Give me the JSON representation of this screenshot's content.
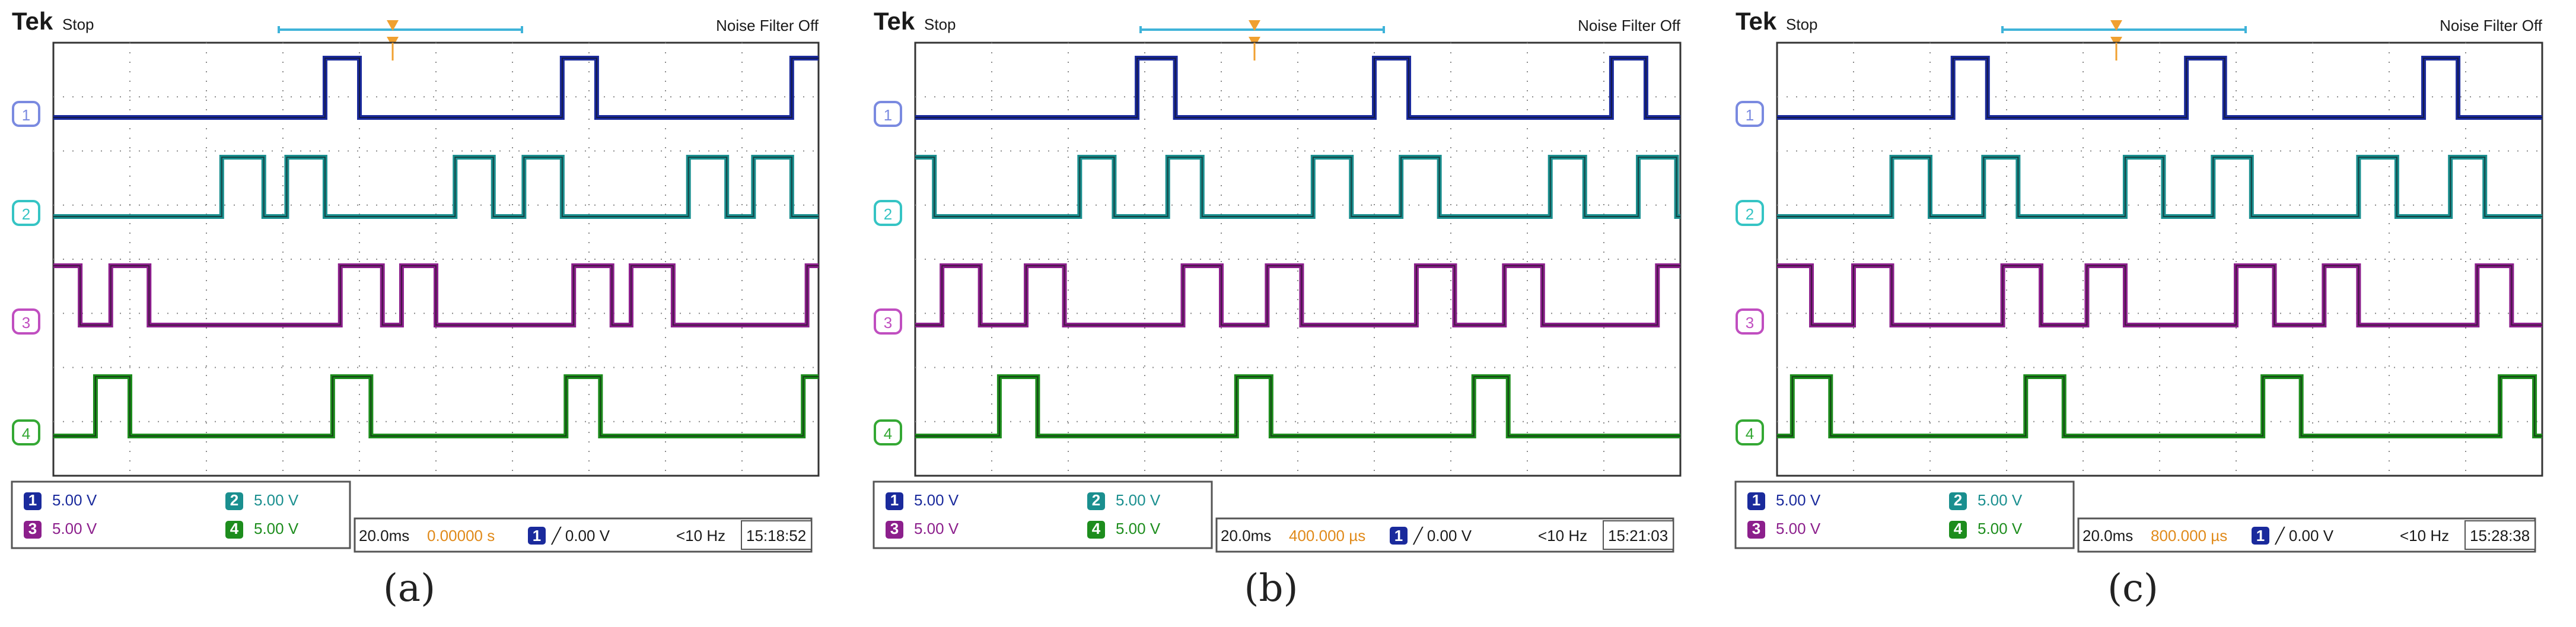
{
  "chart_data": [
    {
      "type": "line",
      "panel_label": "(a)",
      "brand": "Tek",
      "run_state": "Stop",
      "noise_filter": "Noise Filter Off",
      "time_div": "20.0ms",
      "trigger_offset": "0.00000 s",
      "trigger_source": "1",
      "trigger_level": "╱ 0.00 V",
      "trigger_freq": "<10 Hz",
      "timestamp": "15:18:52",
      "channels": [
        {
          "id": "1",
          "scale": "5.00 V",
          "color": "#1a2a9c",
          "label_color": "#7a8ae0"
        },
        {
          "id": "2",
          "scale": "5.00 V",
          "color": "#1a8f8f",
          "label_color": "#35c4c4"
        },
        {
          "id": "3",
          "scale": "5.00 V",
          "color": "#8c1f8c",
          "label_color": "#c04ec0"
        },
        {
          "id": "4",
          "scale": "5.00 V",
          "color": "#1d8d1d",
          "label_color": "#34a834"
        }
      ],
      "x_range": [
        0,
        10
      ],
      "series": [
        {
          "channel": "1",
          "high_intervals": [
            [
              3.55,
              4.0
            ],
            [
              6.65,
              7.1
            ],
            [
              9.65,
              10.1
            ]
          ]
        },
        {
          "channel": "2",
          "high_intervals": [
            [
              2.2,
              2.75
            ],
            [
              3.05,
              3.55
            ],
            [
              5.25,
              5.75
            ],
            [
              6.15,
              6.65
            ],
            [
              8.3,
              8.8
            ],
            [
              9.15,
              9.65
            ]
          ]
        },
        {
          "channel": "3",
          "high_intervals": [
            [
              -0.1,
              0.35
            ],
            [
              0.75,
              1.25
            ],
            [
              3.75,
              4.3
            ],
            [
              4.55,
              5.0
            ],
            [
              6.8,
              7.3
            ],
            [
              7.55,
              8.1
            ],
            [
              9.85,
              10.1
            ]
          ]
        },
        {
          "channel": "4",
          "high_intervals": [
            [
              0.55,
              1.0
            ],
            [
              3.65,
              4.15
            ],
            [
              6.7,
              7.15
            ],
            [
              9.8,
              10.1
            ]
          ]
        }
      ]
    },
    {
      "type": "line",
      "panel_label": "(b)",
      "brand": "Tek",
      "run_state": "Stop",
      "noise_filter": "Noise Filter Off",
      "time_div": "20.0ms",
      "trigger_offset": "400.000 µs",
      "trigger_source": "1",
      "trigger_level": "╱ 0.00 V",
      "trigger_freq": "<10 Hz",
      "timestamp": "15:21:03",
      "channels": [
        {
          "id": "1",
          "scale": "5.00 V",
          "color": "#1a2a9c",
          "label_color": "#7a8ae0"
        },
        {
          "id": "2",
          "scale": "5.00 V",
          "color": "#1a8f8f",
          "label_color": "#35c4c4"
        },
        {
          "id": "3",
          "scale": "5.00 V",
          "color": "#8c1f8c",
          "label_color": "#c04ec0"
        },
        {
          "id": "4",
          "scale": "5.00 V",
          "color": "#1d8d1d",
          "label_color": "#34a834"
        }
      ],
      "x_range": [
        0,
        10
      ],
      "series": [
        {
          "channel": "1",
          "high_intervals": [
            [
              2.9,
              3.4
            ],
            [
              6.0,
              6.45
            ],
            [
              9.1,
              9.55
            ]
          ]
        },
        {
          "channel": "2",
          "high_intervals": [
            [
              -0.1,
              0.25
            ],
            [
              2.15,
              2.6
            ],
            [
              3.3,
              3.75
            ],
            [
              5.2,
              5.7
            ],
            [
              6.35,
              6.85
            ],
            [
              8.3,
              8.75
            ],
            [
              9.45,
              9.95
            ]
          ]
        },
        {
          "channel": "3",
          "high_intervals": [
            [
              0.35,
              0.85
            ],
            [
              1.45,
              1.95
            ],
            [
              3.5,
              4.0
            ],
            [
              4.6,
              5.05
            ],
            [
              6.55,
              7.05
            ],
            [
              7.7,
              8.2
            ],
            [
              9.7,
              10.1
            ]
          ]
        },
        {
          "channel": "4",
          "high_intervals": [
            [
              1.1,
              1.6
            ],
            [
              4.2,
              4.65
            ],
            [
              7.3,
              7.75
            ]
          ]
        }
      ]
    },
    {
      "type": "line",
      "panel_label": "(c)",
      "brand": "Tek",
      "run_state": "Stop",
      "noise_filter": "Noise Filter Off",
      "time_div": "20.0ms",
      "trigger_offset": "800.000 µs",
      "trigger_source": "1",
      "trigger_level": "╱ 0.00 V",
      "trigger_freq": "<10 Hz",
      "timestamp": "15:28:38",
      "channels": [
        {
          "id": "1",
          "scale": "5.00 V",
          "color": "#1a2a9c",
          "label_color": "#7a8ae0"
        },
        {
          "id": "2",
          "scale": "5.00 V",
          "color": "#1a8f8f",
          "label_color": "#35c4c4"
        },
        {
          "id": "3",
          "scale": "5.00 V",
          "color": "#8c1f8c",
          "label_color": "#c04ec0"
        },
        {
          "id": "4",
          "scale": "5.00 V",
          "color": "#1d8d1d",
          "label_color": "#34a834"
        }
      ],
      "x_range": [
        0,
        10
      ],
      "series": [
        {
          "channel": "1",
          "high_intervals": [
            [
              2.3,
              2.75
            ],
            [
              5.35,
              5.85
            ],
            [
              8.45,
              8.9
            ]
          ]
        },
        {
          "channel": "2",
          "high_intervals": [
            [
              1.5,
              2.0
            ],
            [
              2.7,
              3.15
            ],
            [
              4.55,
              5.05
            ],
            [
              5.7,
              6.2
            ],
            [
              7.6,
              8.1
            ],
            [
              8.8,
              9.25
            ]
          ]
        },
        {
          "channel": "3",
          "high_intervals": [
            [
              -0.1,
              0.45
            ],
            [
              1.0,
              1.5
            ],
            [
              2.95,
              3.45
            ],
            [
              4.05,
              4.55
            ],
            [
              6.0,
              6.5
            ],
            [
              7.15,
              7.6
            ],
            [
              9.15,
              9.6
            ]
          ]
        },
        {
          "channel": "4",
          "high_intervals": [
            [
              0.2,
              0.7
            ],
            [
              3.25,
              3.75
            ],
            [
              6.35,
              6.85
            ],
            [
              9.45,
              9.9
            ]
          ]
        }
      ]
    }
  ]
}
